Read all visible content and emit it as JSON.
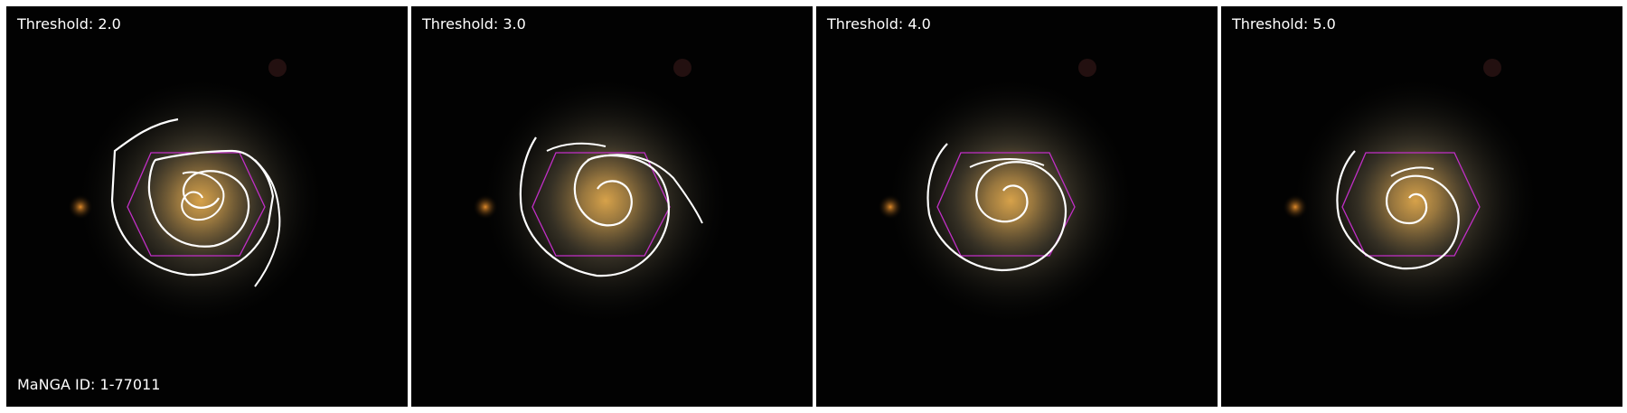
{
  "panels": [
    {
      "label": "Threshold: 2.0"
    },
    {
      "label": "Threshold: 3.0"
    },
    {
      "label": "Threshold: 4.0"
    },
    {
      "label": "Threshold: 5.0"
    }
  ],
  "footer": {
    "manga_id": "MaNGA ID: 1-77011"
  },
  "colors": {
    "background": "#020202",
    "contour": "#ffffff",
    "hexagon": "#c22fc7",
    "galaxy_core": "#d7a24a"
  }
}
